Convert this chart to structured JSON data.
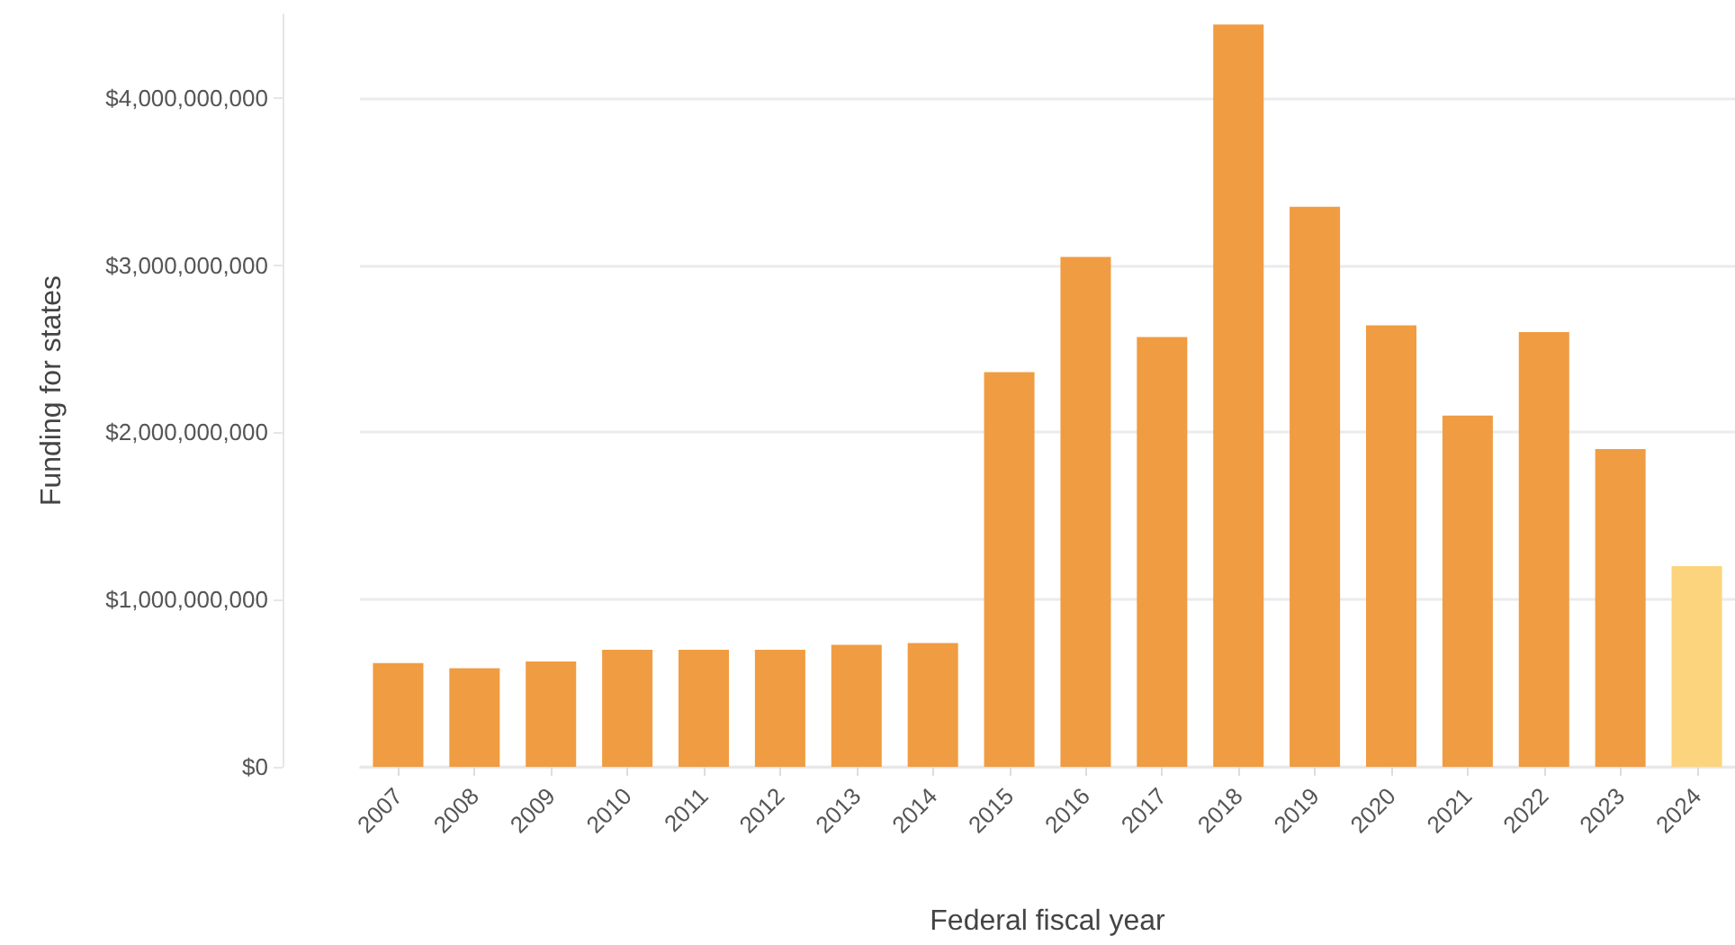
{
  "chart_data": {
    "type": "bar",
    "xlabel": "Federal fiscal year",
    "ylabel": "Funding for states",
    "categories": [
      "2007",
      "2008",
      "2009",
      "2010",
      "2011",
      "2012",
      "2013",
      "2014",
      "2015",
      "2016",
      "2017",
      "2018",
      "2019",
      "2020",
      "2021",
      "2022",
      "2023",
      "2024"
    ],
    "values": [
      620000000,
      590000000,
      630000000,
      700000000,
      700000000,
      700000000,
      730000000,
      740000000,
      2360000000,
      3050000000,
      2570000000,
      4440000000,
      3350000000,
      2640000000,
      2100000000,
      2600000000,
      1900000000,
      1200000000
    ],
    "colors": [
      "#f09c42",
      "#f09c42",
      "#f09c42",
      "#f09c42",
      "#f09c42",
      "#f09c42",
      "#f09c42",
      "#f09c42",
      "#f09c42",
      "#f09c42",
      "#f09c42",
      "#f09c42",
      "#f09c42",
      "#f09c42",
      "#f09c42",
      "#f09c42",
      "#f09c42",
      "#fdd47e"
    ],
    "ylim": [
      0,
      4500000000
    ],
    "yticks": [
      {
        "value": 0,
        "label": "$0"
      },
      {
        "value": 1000000000,
        "label": "$1,000,000,000"
      },
      {
        "value": 2000000000,
        "label": "$2,000,000,000"
      },
      {
        "value": 3000000000,
        "label": "$3,000,000,000"
      },
      {
        "value": 4000000000,
        "label": "$4,000,000,000"
      }
    ],
    "grid": "y"
  }
}
